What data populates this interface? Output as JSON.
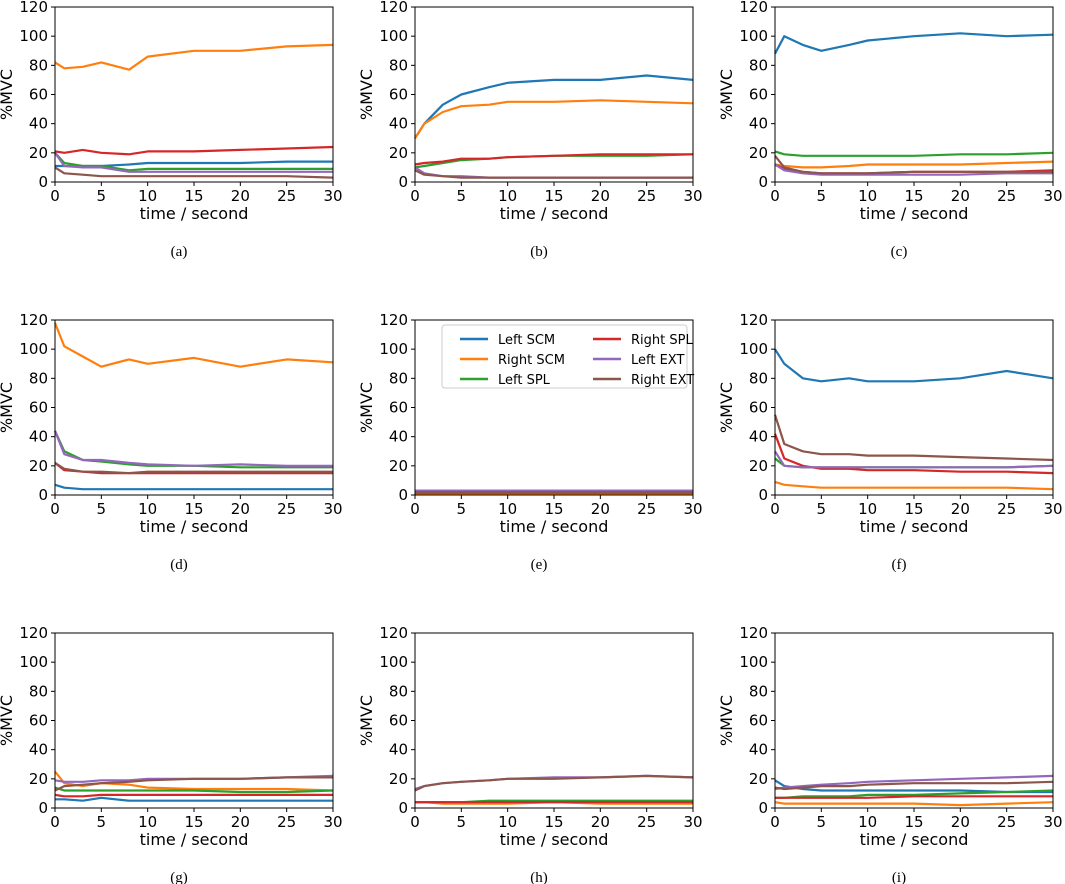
{
  "chart_data": {
    "type": "line",
    "xlabel": "time / second",
    "ylabel": "%MVC",
    "xlim": [
      0,
      30
    ],
    "ylim": [
      0,
      120
    ],
    "xticks": [
      0,
      5,
      10,
      15,
      20,
      25,
      30
    ],
    "yticks": [
      0,
      20,
      40,
      60,
      80,
      100,
      120
    ],
    "series_names": [
      "Left SCM",
      "Right SCM",
      "Left SPL",
      "Right SPL",
      "Left EXT",
      "Right EXT"
    ],
    "colors": [
      "#1f77b4",
      "#ff7f0e",
      "#2ca02c",
      "#d62728",
      "#9467bd",
      "#8c564b"
    ],
    "x": [
      0,
      1,
      3,
      5,
      8,
      10,
      15,
      20,
      25,
      30
    ],
    "legend_panel": "e",
    "legend_placement": "top",
    "panels": [
      {
        "caption": "(a)",
        "series": [
          [
            11,
            11,
            11,
            11,
            12,
            13,
            13,
            13,
            14,
            14
          ],
          [
            82,
            78,
            79,
            82,
            77,
            86,
            90,
            90,
            93,
            94
          ],
          [
            20,
            13,
            11,
            11,
            8,
            9,
            9,
            9,
            9,
            9
          ],
          [
            21,
            20,
            22,
            20,
            19,
            21,
            21,
            22,
            23,
            24
          ],
          [
            20,
            11,
            10,
            10,
            7,
            7,
            7,
            7,
            7,
            7
          ],
          [
            10,
            6,
            5,
            4,
            4,
            4,
            4,
            4,
            4,
            3
          ]
        ]
      },
      {
        "caption": "(b)",
        "series": [
          [
            30,
            40,
            53,
            60,
            65,
            68,
            70,
            70,
            73,
            70
          ],
          [
            30,
            40,
            48,
            52,
            53,
            55,
            55,
            56,
            55,
            54
          ],
          [
            10,
            11,
            13,
            15,
            16,
            17,
            18,
            18,
            18,
            19
          ],
          [
            12,
            13,
            14,
            16,
            16,
            17,
            18,
            19,
            19,
            19
          ],
          [
            10,
            6,
            4,
            4,
            3,
            3,
            3,
            3,
            3,
            3
          ],
          [
            8,
            5,
            4,
            3,
            3,
            3,
            3,
            3,
            3,
            3
          ]
        ]
      },
      {
        "caption": "(c)",
        "series": [
          [
            88,
            100,
            94,
            90,
            94,
            97,
            100,
            102,
            100,
            101
          ],
          [
            12,
            11,
            10,
            10,
            11,
            12,
            12,
            12,
            13,
            14
          ],
          [
            21,
            19,
            18,
            18,
            18,
            18,
            18,
            19,
            19,
            20
          ],
          [
            12,
            9,
            7,
            6,
            6,
            6,
            7,
            7,
            7,
            8
          ],
          [
            12,
            8,
            6,
            5,
            5,
            5,
            5,
            5,
            6,
            6
          ],
          [
            18,
            10,
            7,
            6,
            6,
            6,
            7,
            7,
            7,
            7
          ]
        ]
      },
      {
        "caption": "(d)",
        "series": [
          [
            7,
            5,
            4,
            4,
            4,
            4,
            4,
            4,
            4,
            4
          ],
          [
            118,
            102,
            95,
            88,
            93,
            90,
            94,
            88,
            93,
            91
          ],
          [
            44,
            30,
            24,
            23,
            21,
            20,
            20,
            19,
            19,
            19
          ],
          [
            22,
            17,
            16,
            15,
            15,
            15,
            15,
            15,
            15,
            15
          ],
          [
            44,
            28,
            24,
            24,
            22,
            21,
            20,
            21,
            20,
            20
          ],
          [
            22,
            18,
            16,
            16,
            15,
            16,
            16,
            16,
            16,
            16
          ]
        ]
      },
      {
        "caption": "(e)",
        "series": [
          [
            1,
            1,
            1,
            1,
            1,
            1,
            1,
            1,
            1,
            1
          ],
          [
            1,
            1,
            1,
            1,
            1,
            1,
            1,
            1,
            1,
            1
          ],
          [
            2,
            2,
            2,
            2,
            2,
            2,
            2,
            2,
            2,
            2
          ],
          [
            1.5,
            1.5,
            1.5,
            1.5,
            1.5,
            1.5,
            1.5,
            1.5,
            1.5,
            1.5
          ],
          [
            3,
            3,
            3,
            3,
            3,
            3,
            3,
            3,
            3,
            3
          ],
          [
            2,
            2,
            2,
            2,
            2,
            2,
            2,
            2,
            2,
            2
          ]
        ]
      },
      {
        "caption": "(f)",
        "series": [
          [
            100,
            90,
            80,
            78,
            80,
            78,
            78,
            80,
            85,
            80
          ],
          [
            9,
            7,
            6,
            5,
            5,
            5,
            5,
            5,
            5,
            4
          ],
          [
            25,
            20,
            19,
            19,
            19,
            19,
            19,
            19,
            19,
            20
          ],
          [
            42,
            25,
            20,
            18,
            18,
            17,
            17,
            16,
            16,
            15
          ],
          [
            30,
            20,
            19,
            19,
            19,
            19,
            19,
            19,
            19,
            20
          ],
          [
            55,
            35,
            30,
            28,
            28,
            27,
            27,
            26,
            25,
            24
          ]
        ]
      },
      {
        "caption": "(g)",
        "series": [
          [
            6,
            6,
            5,
            7,
            5,
            5,
            5,
            5,
            5,
            5
          ],
          [
            25,
            17,
            15,
            17,
            16,
            14,
            13,
            13,
            13,
            12
          ],
          [
            14,
            12,
            12,
            12,
            12,
            12,
            12,
            11,
            11,
            12
          ],
          [
            9,
            8,
            8,
            9,
            9,
            9,
            9,
            9,
            9,
            9
          ],
          [
            19,
            18,
            18,
            19,
            19,
            20,
            20,
            20,
            21,
            22
          ],
          [
            12,
            15,
            16,
            17,
            18,
            19,
            20,
            20,
            21,
            21
          ]
        ]
      },
      {
        "caption": "(h)",
        "series": [
          [
            4,
            4,
            4,
            4,
            4,
            4,
            4,
            4,
            4,
            4
          ],
          [
            4,
            4,
            3,
            3,
            3,
            3,
            4,
            3,
            3,
            3
          ],
          [
            4,
            4,
            4,
            4,
            5,
            5,
            5,
            5,
            5,
            5
          ],
          [
            4,
            4,
            4,
            4,
            4,
            4,
            4,
            4,
            4,
            4
          ],
          [
            13,
            15,
            17,
            18,
            19,
            20,
            21,
            21,
            22,
            21
          ],
          [
            12,
            15,
            17,
            18,
            19,
            20,
            20,
            21,
            22,
            21
          ]
        ]
      },
      {
        "caption": "(i)",
        "series": [
          [
            19,
            15,
            13,
            12,
            12,
            12,
            12,
            12,
            11,
            11
          ],
          [
            4,
            3,
            3,
            3,
            3,
            3,
            3,
            2,
            3,
            4
          ],
          [
            7,
            7,
            8,
            8,
            8,
            9,
            9,
            10,
            11,
            12
          ],
          [
            7,
            7,
            7,
            7,
            7,
            7,
            8,
            8,
            8,
            8
          ],
          [
            13,
            14,
            15,
            16,
            17,
            18,
            19,
            20,
            21,
            22
          ],
          [
            14,
            13,
            14,
            15,
            15,
            16,
            17,
            17,
            17,
            18
          ]
        ]
      }
    ]
  }
}
